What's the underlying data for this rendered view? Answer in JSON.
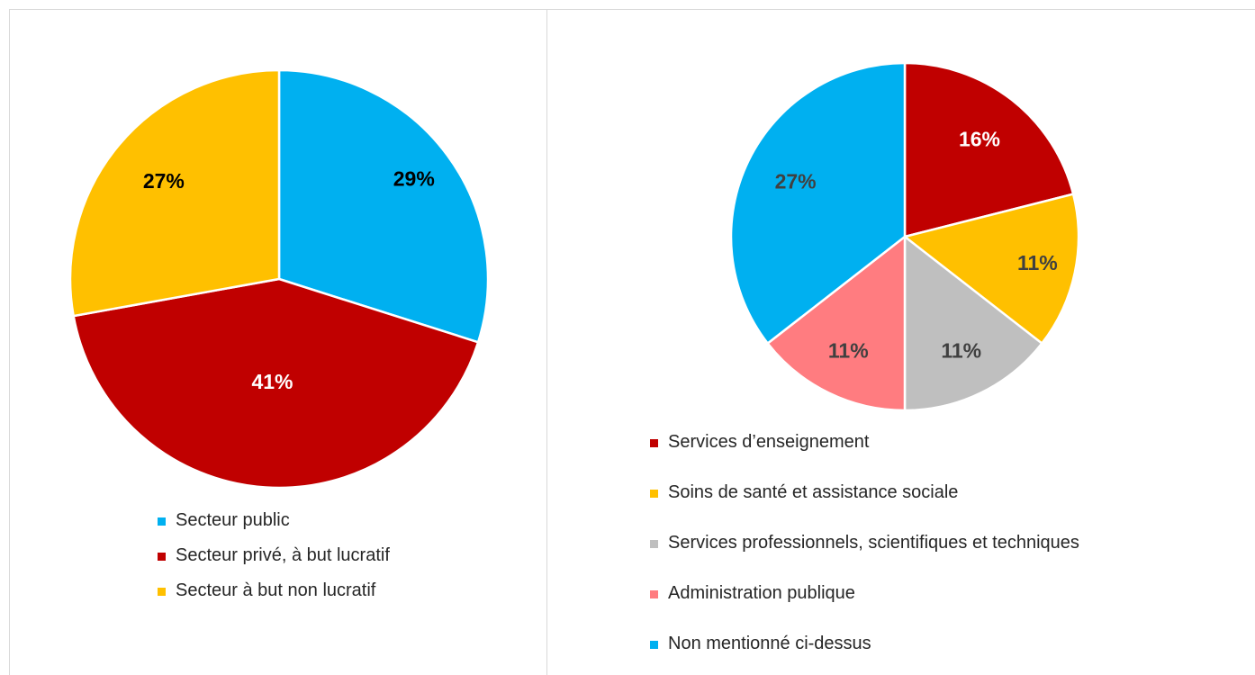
{
  "chart_data": [
    {
      "type": "pie",
      "categories": [
        "Secteur public",
        "Secteur privé, à but lucratif",
        "Secteur à but non lucratif"
      ],
      "values": [
        29,
        41,
        27
      ],
      "value_labels": [
        "29%",
        "41%",
        "27%"
      ],
      "colors": [
        "#00b0f0",
        "#c00000",
        "#ffc000"
      ],
      "label_colors": [
        "#000000",
        "#ffffff",
        "#000000"
      ]
    },
    {
      "type": "pie",
      "categories": [
        "Services d’enseignement",
        " Soins de santé et assistance sociale",
        "Services professionnels, scientifiques et techniques",
        "Administration publique",
        "Non mentionné ci-dessus"
      ],
      "values": [
        16,
        11,
        11,
        11,
        27
      ],
      "value_labels": [
        "16%",
        "11%",
        "11%",
        "11%",
        "27%"
      ],
      "colors": [
        "#c00000",
        "#ffc000",
        "#bfbfbf",
        "#ff7c80",
        "#00b0f0"
      ],
      "label_colors": [
        "#ffffff",
        "#404040",
        "#404040",
        "#404040",
        "#404040"
      ]
    }
  ]
}
